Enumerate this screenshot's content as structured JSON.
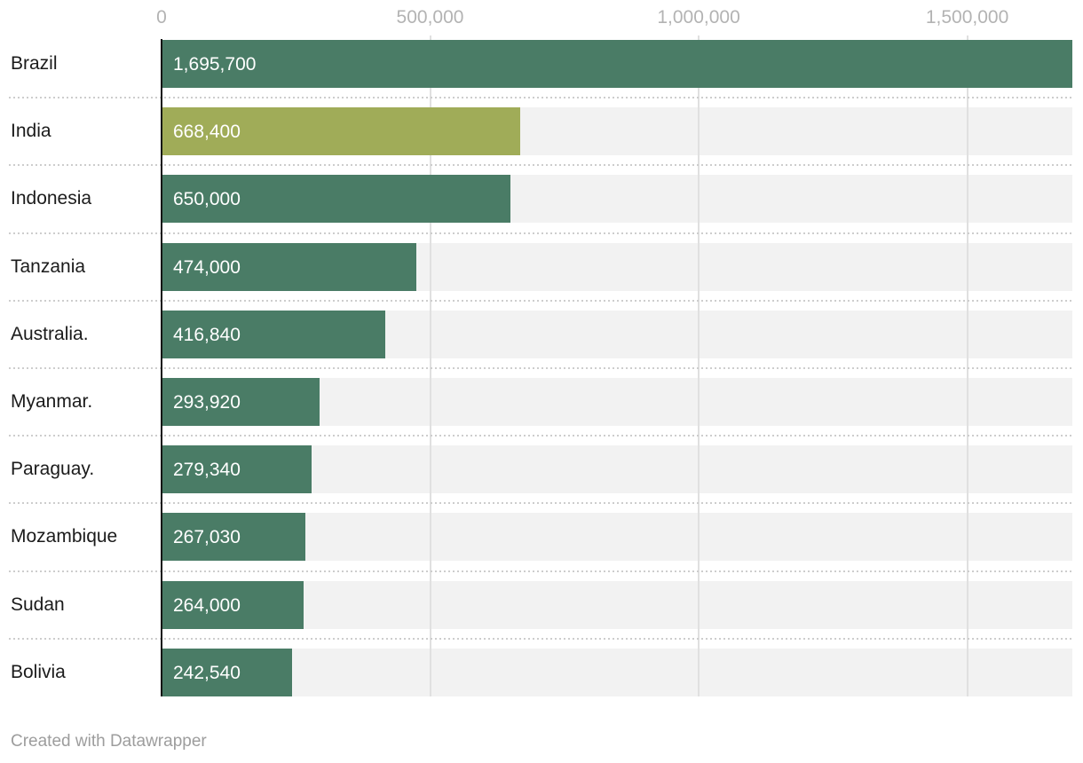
{
  "chart_data": {
    "type": "bar",
    "orientation": "horizontal",
    "categories": [
      "Brazil",
      "India",
      "Indonesia",
      "Tanzania",
      "Australia.",
      "Myanmar.",
      "Paraguay.",
      "Mozambique",
      "Sudan",
      "Bolivia"
    ],
    "values": [
      1695700,
      668400,
      650000,
      474000,
      416840,
      293920,
      279340,
      267030,
      264000,
      242540
    ],
    "value_labels": [
      "1,695,700",
      "668,400",
      "650,000",
      "474,000",
      "416,840",
      "293,920",
      "279,340",
      "267,030",
      "264,000",
      "242,540"
    ],
    "highlight_index": 1,
    "title": "",
    "xlabel": "",
    "ylabel": "",
    "xlim": [
      0,
      1695700
    ],
    "x_ticks": [
      0,
      500000,
      1000000,
      1500000
    ],
    "x_tick_labels": [
      "0",
      "500,000",
      "1,000,000",
      "1,500,000"
    ],
    "grid": true,
    "legend": false,
    "value_labels_inside_bars": true
  },
  "colors": {
    "bar": "#4a7c66",
    "highlight_bar": "#a0ac58",
    "bar_track": "#f2f2f2",
    "gridline": "#e0e0e0",
    "axis_line": "#141414",
    "tick_label": "#b3b3b3",
    "row_label": "#1b1b1b",
    "value_label": "#ffffff",
    "separator": "#cdcdcd",
    "background": "#ffffff",
    "footer_text": "#9d9d9d"
  },
  "footer": {
    "attribution": "Created with Datawrapper"
  }
}
